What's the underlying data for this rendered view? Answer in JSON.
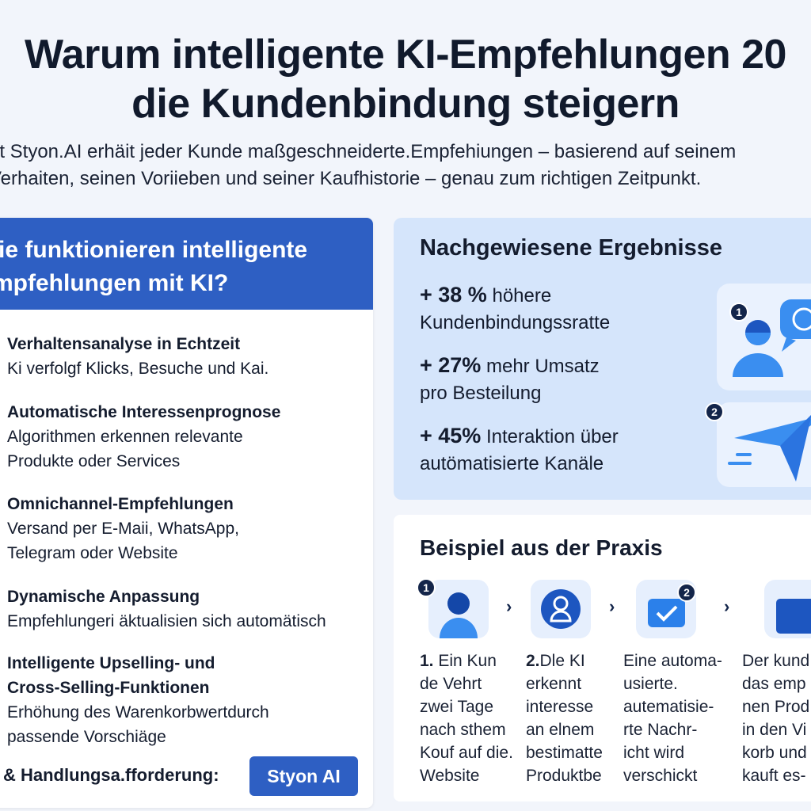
{
  "header": {
    "title_line1": "Warum intelligente KI-Empfehlungen 20",
    "title_line2": "die Kundenbindung steigern",
    "subtitle_line1": "Mit Styon.AI erhäit jeder Kunde maßgeschneiderte.Empfehiungen – basierend auf seinem",
    "subtitle_line2": "Verhaiten, seinen Voriieben und seiner Kaufhistorie – genau zum richtigen Zeitpunkt."
  },
  "left": {
    "heading_line1": "Wie funktionieren intelligente",
    "heading_line2": "Empfehlungen mit KI?",
    "items": [
      {
        "title": "Verhaltensanalyse in Echtzeit",
        "text": "Ki verfolgf Klicks, Besuche und Kai."
      },
      {
        "title": "Automatische Interessenprognose",
        "text": "Algorithmen erkennen relevante\nProdukte oder Services"
      },
      {
        "title": "Omnichannel-Empfehlungen",
        "text": "Versand per E-Maii, WhatsApp,\nTelegram oder Website"
      },
      {
        "title": "Dynamische Anpassung",
        "text": "Empfehlungeri äktualisien sich automätisch"
      },
      {
        "title": "Intelligente Upselling- und\nCross-Selling-Funktionen",
        "text": "Erhöhung des Warenkorbwertdurch\npassende Vorschiäge"
      }
    ],
    "cta_text": "& Handlungsa.fforderung:",
    "cta_button": "Styon AI"
  },
  "results": {
    "title": "Nachgewiesene Ergebnisse",
    "stats": [
      {
        "pct": "+ 38 %",
        "line1": "höhere",
        "line2": "Kundenbindungssratte"
      },
      {
        "pct": "+ 27%",
        "line1": "mehr Umsatz",
        "line2": "pro Besteilung"
      },
      {
        "pct": "+ 45%",
        "line1": "Interaktion über",
        "line2": "autömatisierte Kanäle"
      }
    ],
    "badges": [
      "1",
      "2"
    ],
    "icons": [
      "customer-chat-icon",
      "paper-plane-icon"
    ]
  },
  "praxis": {
    "title": "Beispiel aus der Praxis",
    "badges": [
      "1",
      "2"
    ],
    "steps": [
      {
        "num": "1.",
        "text": " Ein Kun\nde Vehrt\nzwei Tage\nnach sthem\nKouf auf die.\nWebsite",
        "icon": "user-icon"
      },
      {
        "num": "2.",
        "text": "Dle KI\nerkennt\ninteresse\nan elnem\nbestimatte\nProduktbe",
        "icon": "ai-brain-icon"
      },
      {
        "num": "",
        "text": "Eine automa-\nusierte.\nautematisie-\nrte Nachr-\nicht wird\nverschickt",
        "icon": "message-check-icon"
      },
      {
        "num": "",
        "text": "Der kund\ndas emp\nnen Prod\nin den Vi\nkorb und\nkauft es-",
        "icon": "cart-icon"
      }
    ]
  },
  "colors": {
    "accent": "#2e5fc3",
    "panel": "#d5e5fb",
    "dark": "#13254a",
    "icon": "#3a8ef0"
  }
}
